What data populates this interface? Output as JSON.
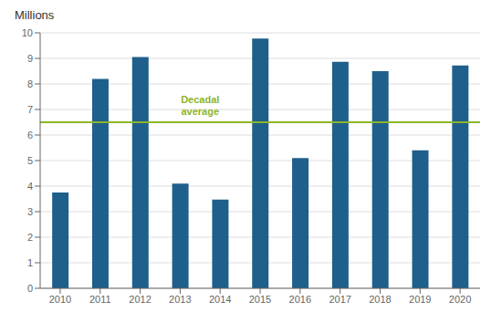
{
  "chart_data": {
    "type": "bar",
    "ylabel": "Millions",
    "categories": [
      "2010",
      "2011",
      "2012",
      "2013",
      "2014",
      "2015",
      "2016",
      "2017",
      "2018",
      "2019",
      "2020"
    ],
    "values": [
      3.75,
      8.2,
      9.05,
      4.1,
      3.47,
      9.78,
      5.1,
      8.87,
      8.5,
      5.4,
      8.72
    ],
    "color": "#1F5F8B",
    "ylim": [
      0,
      10
    ],
    "yticks": [
      0,
      1,
      2,
      3,
      4,
      5,
      6,
      7,
      8,
      9,
      10
    ],
    "grid": true,
    "average_line": {
      "value": 6.5,
      "color": "#8DB52A",
      "label": "Decadal\naverage"
    }
  }
}
